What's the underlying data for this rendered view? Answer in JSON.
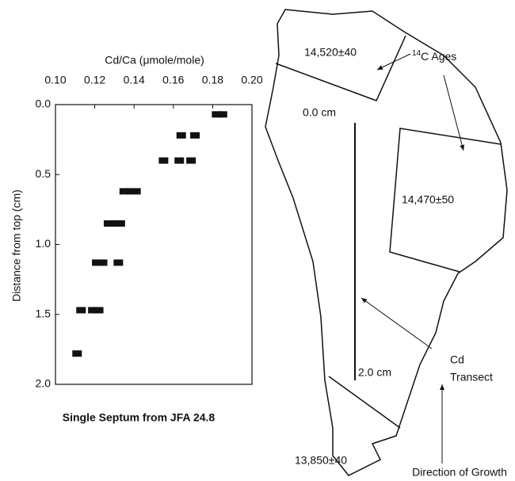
{
  "chart_data": {
    "type": "scatter",
    "x_label": "Cd/Ca (μmole/mole)",
    "y_label": "Distance from top (cm)",
    "caption": "Single Septum from JFA 24.8",
    "xlim": [
      0.1,
      0.2
    ],
    "xticks": [
      {
        "value": 0.1,
        "label": "0.10"
      },
      {
        "value": 0.12,
        "label": "0.12"
      },
      {
        "value": 0.14,
        "label": "0.14"
      },
      {
        "value": 0.16,
        "label": "0.16"
      },
      {
        "value": 0.18,
        "label": "0.18"
      },
      {
        "value": 0.2,
        "label": "0.20"
      }
    ],
    "ylim": [
      0,
      2
    ],
    "yticks": [
      {
        "value": 0,
        "label": "0.0"
      },
      0.5,
      {
        "value": 1,
        "label": "1.0"
      },
      1.5,
      {
        "value": 2,
        "label": "2.0"
      }
    ],
    "y_inverted": true,
    "series": [
      {
        "color": "#111111",
        "x": [
          0.182,
          0.185,
          0.164,
          0.171,
          0.155,
          0.163,
          0.169,
          0.135,
          0.138,
          0.141,
          0.127,
          0.13,
          0.133,
          0.121,
          0.124,
          0.132,
          0.113,
          0.119,
          0.122,
          0.111
        ],
        "values": [
          0.07,
          0.07,
          0.22,
          0.22,
          0.4,
          0.4,
          0.4,
          0.62,
          0.62,
          0.62,
          0.85,
          0.85,
          0.85,
          1.13,
          1.13,
          1.13,
          1.47,
          1.47,
          1.47,
          1.78
        ]
      }
    ]
  },
  "diagram": {
    "age_top": "14,520±40",
    "age_right": "14,470±50",
    "age_bottom": "13,850±40",
    "ages_label": {
      "sup": "14",
      "text": "C Ages"
    },
    "transect_start": "0.0 cm",
    "transect_end": "2.0 cm",
    "transect_label_1": "Cd",
    "transect_label_2": "Transect",
    "growth_label": "Direction of Growth"
  }
}
